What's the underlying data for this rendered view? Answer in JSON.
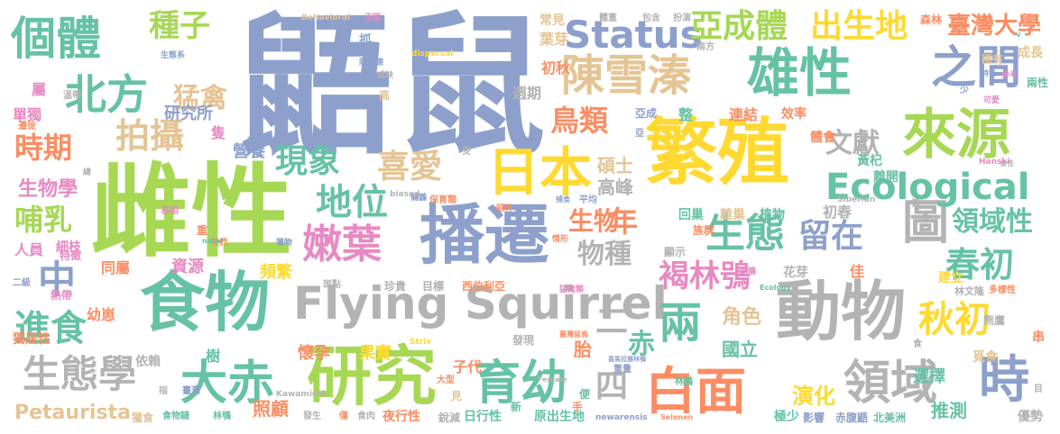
{
  "palette": {
    "blue": "#8da0cb",
    "green": "#a6d854",
    "orange": "#fc8d62",
    "teal": "#66c2a5",
    "pink": "#e78ac3",
    "yellow": "#ffd92f",
    "tan": "#e5c494",
    "gray": "#b3b3b3"
  },
  "words": [
    {
      "text": "鼯鼠",
      "color": "#8da0cb",
      "size": 170
    },
    {
      "text": "雌性",
      "color": "#a6d854",
      "size": 112
    },
    {
      "text": "繁殖",
      "color": "#ffd92f",
      "size": 80
    },
    {
      "text": "食物",
      "color": "#66c2a5",
      "size": 72
    },
    {
      "text": "播遷",
      "color": "#8da0cb",
      "size": 72
    },
    {
      "text": "動物",
      "color": "#b3b3b3",
      "size": 72
    },
    {
      "text": "研究",
      "color": "#a6d854",
      "size": 72
    },
    {
      "text": "來源",
      "color": "#a6d854",
      "size": 60
    },
    {
      "text": "雄性",
      "color": "#66c2a5",
      "size": 58
    },
    {
      "text": "Flying Squirrel",
      "color": "#b3b3b3",
      "size": 50
    },
    {
      "text": "日本",
      "color": "#ffd92f",
      "size": 58
    },
    {
      "text": "個體",
      "color": "#66c2a5",
      "size": 50
    },
    {
      "text": "陳雪溱",
      "color": "#e5c494",
      "size": 48
    },
    {
      "text": "白面",
      "color": "#fc8d62",
      "size": 56
    },
    {
      "text": "領域",
      "color": "#b3b3b3",
      "size": 52
    },
    {
      "text": "時",
      "color": "#8da0cb",
      "size": 56
    },
    {
      "text": "大赤",
      "color": "#66c2a5",
      "size": 52
    },
    {
      "text": "育幼",
      "color": "#66c2a5",
      "size": 52
    },
    {
      "text": "之間",
      "color": "#8da0cb",
      "size": 50
    },
    {
      "text": "圖",
      "color": "#b3b3b3",
      "size": 52
    },
    {
      "text": "北方",
      "color": "#66c2a5",
      "size": 46
    },
    {
      "text": "生態",
      "color": "#66c2a5",
      "size": 44
    },
    {
      "text": "Status",
      "color": "#8da0cb",
      "size": 42
    },
    {
      "text": "Ecological",
      "color": "#66c2a5",
      "size": 40
    },
    {
      "text": "嫩葉",
      "color": "#e78ac3",
      "size": 44
    },
    {
      "text": "中",
      "color": "#8da0cb",
      "size": 42
    },
    {
      "text": "兩",
      "color": "#66c2a5",
      "size": 48
    },
    {
      "text": "生態學",
      "color": "#b3b3b3",
      "size": 42
    },
    {
      "text": "進食",
      "color": "#66c2a5",
      "size": 40
    },
    {
      "text": "秋初",
      "color": "#ffd92f",
      "size": 40
    },
    {
      "text": "春初",
      "color": "#66c2a5",
      "size": 38
    },
    {
      "text": "地位",
      "color": "#66c2a5",
      "size": 40
    },
    {
      "text": "拍攝",
      "color": "#e5c494",
      "size": 38
    },
    {
      "text": "現象",
      "color": "#66c2a5",
      "size": 36
    },
    {
      "text": "喜愛",
      "color": "#e5c494",
      "size": 36
    },
    {
      "text": "亞成體",
      "color": "#a6d854",
      "size": 36
    },
    {
      "text": "出生地",
      "color": "#ffd92f",
      "size": 36
    },
    {
      "text": "種子",
      "color": "#a6d854",
      "size": 34
    },
    {
      "text": "時期",
      "color": "#fc8d62",
      "size": 32
    },
    {
      "text": "哺乳",
      "color": "#a6d854",
      "size": 32
    },
    {
      "text": "鳥類",
      "color": "#fc8d62",
      "size": 32
    },
    {
      "text": "褐林鴞",
      "color": "#e78ac3",
      "size": 34
    },
    {
      "text": "留在",
      "color": "#8da0cb",
      "size": 36
    },
    {
      "text": "物種",
      "color": "#b3b3b3",
      "size": 30
    },
    {
      "text": "年",
      "color": "#fc8d62",
      "size": 32
    },
    {
      "text": "領域性",
      "color": "#66c2a5",
      "size": 30
    },
    {
      "text": "文獻",
      "color": "#b3b3b3",
      "size": 30
    },
    {
      "text": "臺灣大學",
      "color": "#fc8d62",
      "size": 26
    },
    {
      "text": "猛禽",
      "color": "#e5c494",
      "size": 30
    },
    {
      "text": "生物",
      "color": "#fc8d62",
      "size": 28
    },
    {
      "text": "二",
      "color": "#b3b3b3",
      "size": 36
    },
    {
      "text": "赤",
      "color": "#66c2a5",
      "size": 30
    },
    {
      "text": "四",
      "color": "#b3b3b3",
      "size": 36
    },
    {
      "text": "Petaurista",
      "color": "#e5c494",
      "size": 22
    },
    {
      "text": "演化",
      "color": "#ffd92f",
      "size": 24
    },
    {
      "text": "推測",
      "color": "#66c2a5",
      "size": 20
    },
    {
      "text": "碩士",
      "color": "#e5c494",
      "size": 20
    },
    {
      "text": "高峰",
      "color": "#b3b3b3",
      "size": 20
    },
    {
      "text": "生物學",
      "color": "#e78ac3",
      "size": 22
    },
    {
      "text": "角色",
      "color": "#e5c494",
      "size": 22
    },
    {
      "text": "選擇",
      "color": "#66c2a5",
      "size": 18
    },
    {
      "text": "照顧",
      "color": "#fc8d62",
      "size": 20
    },
    {
      "text": "國立",
      "color": "#66c2a5",
      "size": 20
    },
    {
      "text": "營養",
      "color": "#8da0cb",
      "size": 18
    },
    {
      "text": "研究所",
      "color": "#8da0cb",
      "size": 18
    },
    {
      "text": "頻繁",
      "color": "#ffd92f",
      "size": 18
    },
    {
      "text": "懷孕",
      "color": "#fc8d62",
      "size": 18
    },
    {
      "text": "果實",
      "color": "#ffd92f",
      "size": 18
    },
    {
      "text": "子代",
      "color": "#fc8d62",
      "size": 16
    },
    {
      "text": "胎",
      "color": "#fc8d62",
      "size": 20
    },
    {
      "text": "資源",
      "color": "#e78ac3",
      "size": 18
    },
    {
      "text": "同屬",
      "color": "#fc8d62",
      "size": 16
    },
    {
      "text": "幼崽",
      "color": "#fc8d62",
      "size": 16
    },
    {
      "text": "依賴",
      "color": "#b3b3b3",
      "size": 14
    },
    {
      "text": "人員",
      "color": "#e78ac3",
      "size": 16
    },
    {
      "text": "單獨",
      "color": "#e78ac3",
      "size": 16
    },
    {
      "text": "屬",
      "color": "#e78ac3",
      "size": 16
    },
    {
      "text": "獨居性",
      "color": "#fc8d62",
      "size": 14
    },
    {
      "text": "樹",
      "color": "#66c2a5",
      "size": 16
    },
    {
      "text": "細枝",
      "color": "#e78ac3",
      "size": 14
    },
    {
      "text": "夜行性",
      "color": "#fc8d62",
      "size": 14
    },
    {
      "text": "日行性",
      "color": "#66c2a5",
      "size": 14
    },
    {
      "text": "原出生地",
      "color": "#66c2a5",
      "size": 14
    },
    {
      "text": "赤腹鼯",
      "color": "#8da0cb",
      "size": 12
    },
    {
      "text": "北美洲",
      "color": "#66c2a5",
      "size": 12
    },
    {
      "text": "影響",
      "color": "#8da0cb",
      "size": 12
    },
    {
      "text": "極少",
      "color": "#66c2a5",
      "size": 14
    },
    {
      "text": "優勢",
      "color": "#b3b3b3",
      "size": 14
    },
    {
      "text": "成長",
      "color": "#e5c494",
      "size": 14
    },
    {
      "text": "兩性",
      "color": "#66c2a5",
      "size": 12
    },
    {
      "text": "稀有",
      "color": "#e5c494",
      "size": 12
    },
    {
      "text": "森林",
      "color": "#fc8d62",
      "size": 12
    },
    {
      "text": "常見",
      "color": "#e5c494",
      "size": 14
    },
    {
      "text": "葉芽",
      "color": "#e5c494",
      "size": 16
    },
    {
      "text": "初秋",
      "color": "#fc8d62",
      "size": 16
    },
    {
      "text": "週期",
      "color": "#b3b3b3",
      "size": 16
    },
    {
      "text": "效率",
      "color": "#fc8d62",
      "size": 14
    },
    {
      "text": "連結",
      "color": "#fc8d62",
      "size": 16
    },
    {
      "text": "體會",
      "color": "#fc8d62",
      "size": 14
    },
    {
      "text": "黃杞",
      "color": "#66c2a5",
      "size": 14
    },
    {
      "text": "離開",
      "color": "#66c2a5",
      "size": 14
    },
    {
      "text": "回巢",
      "color": "#66c2a5",
      "size": 14
    },
    {
      "text": "離巢",
      "color": "#e5c494",
      "size": 14
    },
    {
      "text": "植物",
      "color": "#66c2a5",
      "size": 14
    },
    {
      "text": "初春",
      "color": "#b3b3b3",
      "size": 16
    },
    {
      "text": "花芽",
      "color": "#b3b3b3",
      "size": 14
    },
    {
      "text": "佳",
      "color": "#fc8d62",
      "size": 16
    },
    {
      "text": "建立",
      "color": "#ffd92f",
      "size": 14
    },
    {
      "text": "熊鷹",
      "color": "#b3b3b3",
      "size": 12
    },
    {
      "text": "串",
      "color": "#fc8d62",
      "size": 14
    },
    {
      "text": "覓食",
      "color": "#e5c494",
      "size": 14
    },
    {
      "text": "林文隆",
      "color": "#b3b3b3",
      "size": 11
    },
    {
      "text": "多樣性",
      "color": "#fc8d62",
      "size": 10
    },
    {
      "text": "林鵬",
      "color": "#66c2a5",
      "size": 10
    },
    {
      "text": "西伯利亞",
      "color": "#fc8d62",
      "size": 12
    },
    {
      "text": "顯示",
      "color": "#b3b3b3",
      "size": 12
    },
    {
      "text": "族群",
      "color": "#fc8d62",
      "size": 12
    },
    {
      "text": "發現",
      "color": "#b3b3b3",
      "size": 12
    },
    {
      "text": "目標",
      "color": "#b3b3b3",
      "size": 12
    },
    {
      "text": "珍貴",
      "color": "#b3b3b3",
      "size": 12
    },
    {
      "text": "斑點",
      "color": "#b3b3b3",
      "size": 10
    },
    {
      "text": "猛禽類",
      "color": "#e78ac3",
      "size": 9
    },
    {
      "text": "鵂鶹",
      "color": "#8da0cb",
      "size": 9
    },
    {
      "text": "保育類",
      "color": "#fc8d62",
      "size": 10
    },
    {
      "text": "情形",
      "color": "#fc8d62",
      "size": 9
    },
    {
      "text": "重",
      "color": "#fc8d62",
      "size": 12
    },
    {
      "text": "重量",
      "color": "#8da0cb",
      "size": 10
    },
    {
      "text": "大型",
      "color": "#fc8d62",
      "size": 10
    },
    {
      "text": "便",
      "color": "#66c2a5",
      "size": 12
    },
    {
      "text": "手",
      "color": "#fc8d62",
      "size": 12
    },
    {
      "text": "見",
      "color": "#e5c494",
      "size": 12
    },
    {
      "text": "新",
      "color": "#66c2a5",
      "size": 12
    },
    {
      "text": "銳減",
      "color": "#b3b3b3",
      "size": 12
    },
    {
      "text": "僅",
      "color": "#fc8d62",
      "size": 10
    },
    {
      "text": "發生",
      "color": "#b3b3b3",
      "size": 10
    },
    {
      "text": "食肉",
      "color": "#b3b3b3",
      "size": 10
    },
    {
      "text": "林鴞",
      "color": "#66c2a5",
      "size": 10
    },
    {
      "text": "食物鏈",
      "color": "#66c2a5",
      "size": 10
    },
    {
      "text": "獵食",
      "color": "#e5c494",
      "size": 12
    },
    {
      "text": "臺灣",
      "color": "#8da0cb",
      "size": 10
    },
    {
      "text": "特徵",
      "color": "#e78ac3",
      "size": 12
    },
    {
      "text": "熱帶",
      "color": "#e78ac3",
      "size": 12
    },
    {
      "text": "二級",
      "color": "#8da0cb",
      "size": 10
    },
    {
      "text": "長相",
      "color": "#e78ac3",
      "size": 10
    },
    {
      "text": "牠們",
      "color": "#fc8d62",
      "size": 9
    },
    {
      "text": "獵物",
      "color": "#8da0cb",
      "size": 9
    },
    {
      "text": "溫帶",
      "color": "#b3b3b3",
      "size": 10
    },
    {
      "text": "遷徙",
      "color": "#fc8d62",
      "size": 10
    },
    {
      "text": "總",
      "color": "#b3b3b3",
      "size": 9
    },
    {
      "text": "生態系",
      "color": "#8da0cb",
      "size": 9
    },
    {
      "text": "陳明德",
      "color": "#8da0cb",
      "size": 9
    },
    {
      "text": "或缺",
      "color": "#b3b3b3",
      "size": 9
    },
    {
      "text": "高",
      "color": "#e5c494",
      "size": 12
    },
    {
      "text": "抓",
      "color": "#8da0cb",
      "size": 14
    },
    {
      "text": "隻",
      "color": "#e78ac3",
      "size": 16
    },
    {
      "text": "整",
      "color": "#66c2a5",
      "size": 16
    },
    {
      "text": "亞成",
      "color": "#8da0cb",
      "size": 12
    },
    {
      "text": "亞",
      "color": "#8da0cb",
      "size": 10
    },
    {
      "text": "少",
      "color": "#8da0cb",
      "size": 10
    },
    {
      "text": "可愛",
      "color": "#e78ac3",
      "size": 9
    },
    {
      "text": "特有",
      "color": "#8da0cb",
      "size": 8
    },
    {
      "text": "參考",
      "color": "#e78ac3",
      "size": 9
    },
    {
      "text": "南方",
      "color": "#b3b3b3",
      "size": 10
    },
    {
      "text": "扮演",
      "color": "#b3b3b3",
      "size": 10
    },
    {
      "text": "包含",
      "color": "#b3b3b3",
      "size": 10
    },
    {
      "text": "體重",
      "color": "#b3b3b3",
      "size": 10
    },
    {
      "text": "王穎",
      "color": "#e78ac3",
      "size": 9
    },
    {
      "text": "受",
      "color": "#b3b3b3",
      "size": 10
    },
    {
      "text": "貂科",
      "color": "#fc8d62",
      "size": 9
    },
    {
      "text": "捕食",
      "color": "#8da0cb",
      "size": 8
    },
    {
      "text": "平均",
      "color": "#8da0cb",
      "size": 10
    },
    {
      "text": "幼鵑",
      "color": "#e78ac3",
      "size": 9
    },
    {
      "text": "皆",
      "color": "#b3b3b3",
      "size": 10
    },
    {
      "text": "食性",
      "color": "#b3b3b3",
      "size": 8
    },
    {
      "text": "食",
      "color": "#b3b3b3",
      "size": 10
    },
    {
      "text": "目",
      "color": "#b3b3b3",
      "size": 10
    },
    {
      "text": "指",
      "color": "#b3b3b3",
      "size": 10
    },
    {
      "text": "臺灣留鳥",
      "color": "#fc8d62",
      "size": 8
    },
    {
      "text": "喜馬拉雅林鴞",
      "color": "#8da0cb",
      "size": 7
    },
    {
      "text": "Female",
      "color": "#b3b3b3",
      "size": 8
    },
    {
      "text": "Behavioral",
      "color": "#e5c494",
      "size": 9
    },
    {
      "text": "dispersal",
      "color": "#ffd92f",
      "size": 9
    },
    {
      "text": "biased",
      "color": "#b3b3b3",
      "size": 9
    },
    {
      "text": "Hanski",
      "color": "#e78ac3",
      "size": 9
    },
    {
      "text": "Siberian",
      "color": "#b3b3b3",
      "size": 9
    },
    {
      "text": "natal",
      "color": "#66c2a5",
      "size": 8
    },
    {
      "text": "Ecology",
      "color": "#66c2a5",
      "size": 8
    },
    {
      "text": "Strix",
      "color": "#ffd92f",
      "size": 9
    },
    {
      "text": "Kawamichi",
      "color": "#b3b3b3",
      "size": 9
    },
    {
      "text": "newarensis",
      "color": "#8da0cb",
      "size": 9
    },
    {
      "text": "Selonen",
      "color": "#fc8d62",
      "size": 8
    },
    {
      "text": "K",
      "color": "#8da0cb",
      "size": 8
    },
    {
      "text": "V",
      "color": "#66c2a5",
      "size": 7
    }
  ]
}
